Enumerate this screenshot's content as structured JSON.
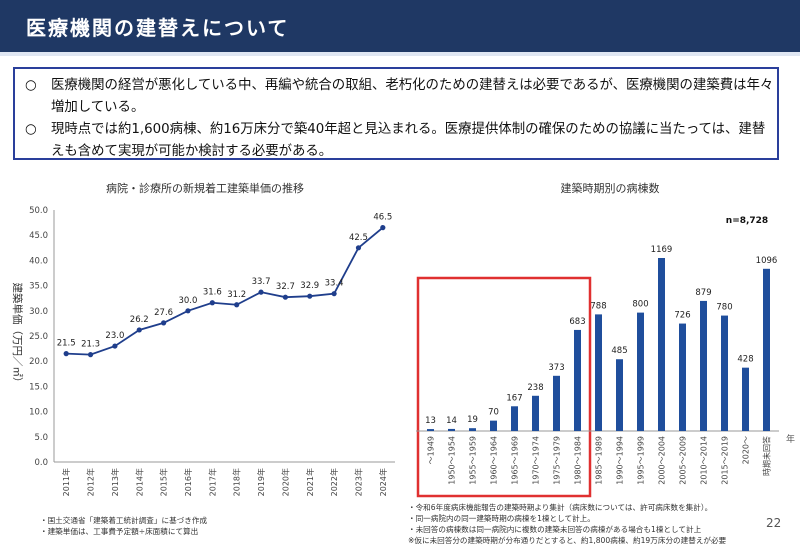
{
  "header": {
    "title": "医療機関の建替えについて"
  },
  "summary": {
    "bullets": [
      {
        "mark": "○",
        "text": "医療機関の経営が悪化している中、再編や統合の取組、老朽化のための建替えは必要であるが、医療機関の建築費は年々増加している。"
      },
      {
        "mark": "○",
        "text": "現時点では約1,600病棟、約16万床分で築40年超と見込まれる。医療提供体制の確保のための協議に当たっては、建替えも含めて実現が可能か検討する必要がある。"
      }
    ]
  },
  "chart_data": [
    {
      "type": "line",
      "title": "病院・診療所の新規着工建築単価の推移",
      "ylabel": "建築単価（万円／㎡）",
      "xlabel": "",
      "ylim": [
        0,
        50
      ],
      "yticks": [
        "0.0",
        "5.0",
        "10.0",
        "15.0",
        "20.0",
        "25.0",
        "30.0",
        "35.0",
        "40.0",
        "45.0",
        "50.0"
      ],
      "grid": false,
      "color": "#1f3e8c",
      "x": [
        "2011年",
        "2012年",
        "2013年",
        "2014年",
        "2015年",
        "2016年",
        "2017年",
        "2018年",
        "2019年",
        "2020年",
        "2021年",
        "2022年",
        "2023年",
        "2024年"
      ],
      "values": [
        21.5,
        21.3,
        23.0,
        26.2,
        27.6,
        30.0,
        31.6,
        31.2,
        33.7,
        32.7,
        32.9,
        33.4,
        42.5,
        46.5
      ],
      "labels": [
        "21.5",
        "21.3",
        "23.0",
        "26.2",
        "27.6",
        "30.0",
        "31.6",
        "31.2",
        "33.7",
        "32.7",
        "32.9",
        "33.4",
        "42.5",
        "46.5"
      ]
    },
    {
      "type": "bar",
      "title": "建築時期別の病棟数",
      "annotation": "n=8,728",
      "xlabel": "年",
      "color": "#1f4e9c",
      "highlight_color": "#e03030",
      "highlight_range": [
        "～1949",
        "1980～1984"
      ],
      "categories": [
        "～1949",
        "1950～1954",
        "1955～1959",
        "1960～1964",
        "1965～1969",
        "1970～1974",
        "1975～1979",
        "1980～1984",
        "1985～1989",
        "1990～1994",
        "1995～1999",
        "2000～2004",
        "2005～2009",
        "2010～2014",
        "2015～2019",
        "2020～",
        "時期未回答"
      ],
      "values": [
        13,
        14,
        19,
        70,
        167,
        238,
        373,
        683,
        788,
        485,
        800,
        1169,
        726,
        879,
        780,
        428,
        1096
      ],
      "labels": [
        "13",
        "14",
        "19",
        "70",
        "167",
        "238",
        "373",
        "683",
        "788",
        "485",
        "800",
        "1169",
        "726",
        "879",
        "780",
        "428",
        "1096"
      ]
    }
  ],
  "notes": {
    "left": [
      "・国土交通省「建築着工統計調査」に基づき作成",
      "・建築単価は、工事費予定額÷床面積にて算出"
    ],
    "right": [
      "・令和6年度病床機能報告の建築時期より集計（病床数については、許可病床数を集計）。",
      "・同一病院内の同一建築時期の病棟を1棟として計上。",
      "・未回答の病棟数は同一病院内に複数の建築未回答の病棟がある場合も1棟として計上",
      "※仮に未回答分の建築時期が分布通りだとすると、約1,800病棟、約19万床分の建替えが必要"
    ]
  },
  "page_number": "22"
}
